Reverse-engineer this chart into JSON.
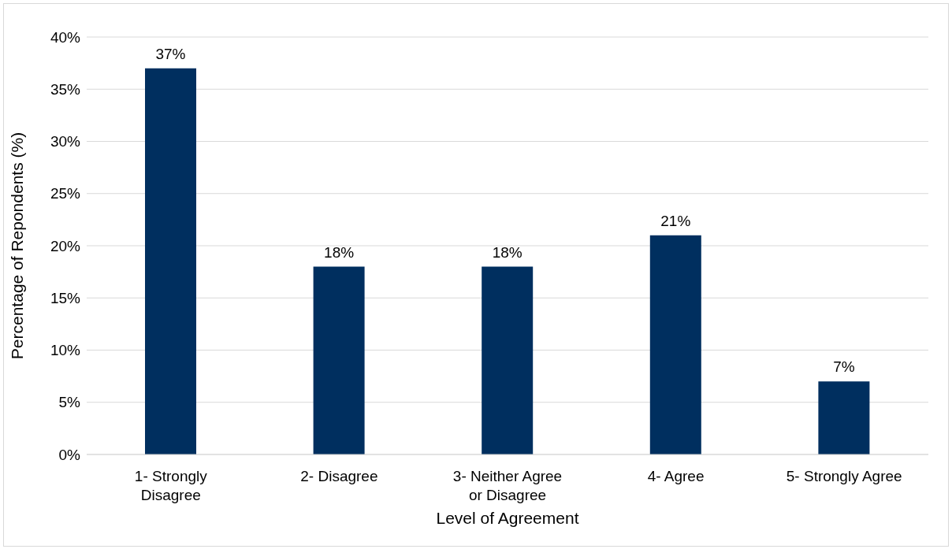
{
  "chart_data": {
    "type": "bar",
    "xlabel": "Level of Agreement",
    "ylabel": "Percentage of Repondents (%)",
    "categories": [
      "1- Strongly Disagree",
      "2- Disagree",
      "3- Neither Agree or Disagree",
      "4- Agree",
      "5- Strongly Agree"
    ],
    "values": [
      37,
      18,
      18,
      21,
      7
    ],
    "value_labels": [
      "37%",
      "18%",
      "18%",
      "21%",
      "7%"
    ],
    "color": "#002f5f",
    "ylim": [
      0,
      40
    ],
    "yticks": [
      {
        "value": 0,
        "label": "0%"
      },
      {
        "value": 5,
        "label": "5%"
      },
      {
        "value": 10,
        "label": "10%"
      },
      {
        "value": 15,
        "label": "15%"
      },
      {
        "value": 20,
        "label": "20%"
      },
      {
        "value": 25,
        "label": "25%"
      },
      {
        "value": 30,
        "label": "30%"
      },
      {
        "value": 35,
        "label": "35%"
      },
      {
        "value": 40,
        "label": "40%"
      }
    ],
    "grid": "y",
    "legend": false
  }
}
